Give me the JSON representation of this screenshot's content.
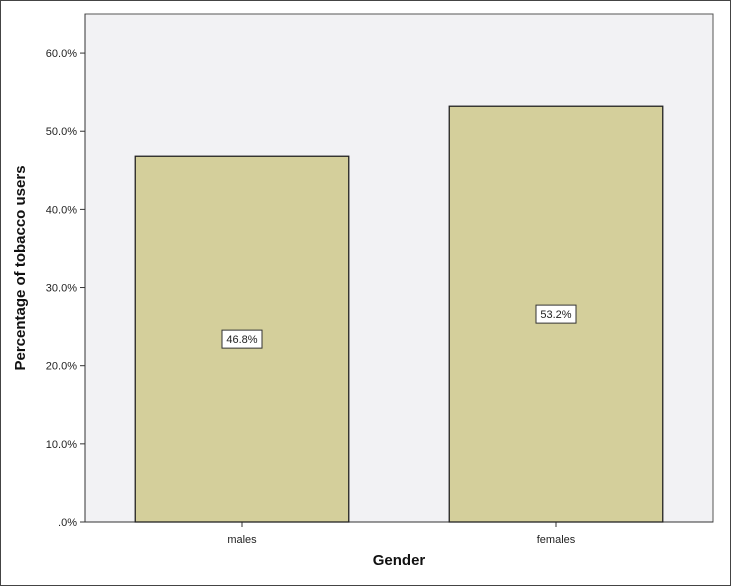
{
  "chart_data": {
    "type": "bar",
    "categories": [
      "males",
      "females"
    ],
    "values": [
      46.8,
      53.2
    ],
    "data_labels": [
      "46.8%",
      "53.2%"
    ],
    "title": "",
    "xlabel": "Gender",
    "ylabel": "Percentage of tobacco users",
    "ylim": [
      0,
      65
    ],
    "yticks": [
      0,
      10,
      20,
      30,
      40,
      50,
      60
    ],
    "ytick_labels": [
      ".0%",
      "10.0%",
      "20.0%",
      "30.0%",
      "40.0%",
      "50.0%",
      "60.0%"
    ],
    "grid": false,
    "legend": "none",
    "colors": {
      "bar_fill": "#d4cf9b",
      "bar_stroke": "#222222",
      "plot_background": "#f2f2f4",
      "page_background": "#ffffff"
    }
  }
}
